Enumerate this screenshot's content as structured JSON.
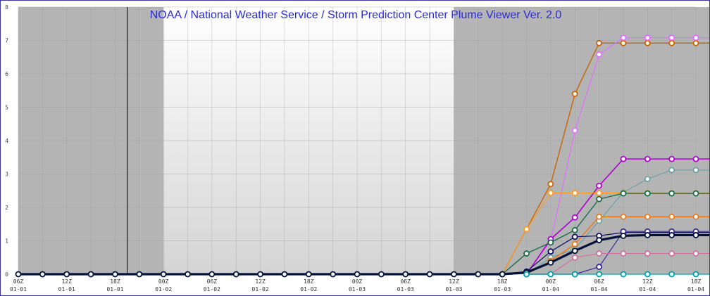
{
  "chart_data": {
    "type": "line",
    "title": "NOAA / National Weather Service / Storm Prediction Center Plume Viewer Ver. 2.0",
    "ylim": [
      0,
      8
    ],
    "yticks": [
      "0",
      "1",
      "2",
      "3",
      "4",
      "5",
      "6",
      "7",
      "8"
    ],
    "x_hours": [
      0,
      6,
      12,
      18,
      24,
      30,
      36,
      42,
      48,
      54,
      60,
      66,
      72,
      78,
      84,
      90,
      96,
      102,
      108,
      114,
      120,
      126,
      128,
      132,
      138,
      144,
      150,
      156,
      162,
      168,
      174,
      180
    ],
    "x_tick_labels": [
      [
        "06Z",
        "01-01"
      ],
      [
        "12Z",
        "01-01"
      ],
      [
        "18Z",
        "01-01"
      ],
      [
        "00Z",
        "01-02"
      ],
      [
        "06Z",
        "01-02"
      ],
      [
        "12Z",
        "01-02"
      ],
      [
        "18Z",
        "01-02"
      ],
      [
        "00Z",
        "01-03"
      ],
      [
        "06Z",
        "01-03"
      ],
      [
        "12Z",
        "01-03"
      ],
      [
        "18Z",
        "01-03"
      ],
      [
        "00Z",
        "01-04"
      ],
      [
        "06Z",
        "01-04"
      ],
      [
        "12Z",
        "01-04"
      ],
      [
        "18Z",
        "01-04"
      ]
    ],
    "shaded_periods": [
      [
        0,
        6
      ],
      [
        18,
        30
      ],
      [
        42,
        54
      ],
      [
        66,
        72
      ]
    ],
    "current_time_line": 4.5,
    "grid": true,
    "series": [
      {
        "color": "#c86400",
        "width": 1.4,
        "radius": 3.5,
        "points": [
          [
            60,
            0
          ],
          [
            66,
            2.7
          ],
          [
            69,
            5.4
          ],
          [
            72,
            6.92
          ],
          [
            75,
            6.92
          ],
          [
            78,
            6.92
          ],
          [
            81,
            6.92
          ],
          [
            84,
            6.92
          ],
          [
            87,
            6.92
          ]
        ]
      },
      {
        "color": "#e070ff",
        "width": 1.2,
        "radius": 3.5,
        "points": [
          [
            63,
            0
          ],
          [
            66,
            1.0
          ],
          [
            69,
            4.3
          ],
          [
            72,
            6.58
          ],
          [
            75,
            7.08
          ],
          [
            78,
            7.08
          ],
          [
            81,
            7.08
          ],
          [
            84,
            7.08
          ],
          [
            87,
            7.08
          ]
        ]
      },
      {
        "color": "#b000d0",
        "width": 1.6,
        "radius": 3.5,
        "points": [
          [
            63,
            0
          ],
          [
            66,
            1.05
          ],
          [
            69,
            1.7
          ],
          [
            72,
            2.65
          ],
          [
            75,
            3.45
          ],
          [
            78,
            3.45
          ],
          [
            81,
            3.45
          ],
          [
            84,
            3.45
          ],
          [
            87,
            3.45
          ]
        ]
      },
      {
        "color": "#6fa0a0",
        "width": 1.2,
        "radius": 3.5,
        "points": [
          [
            63,
            0
          ],
          [
            66,
            0.5
          ],
          [
            69,
            0.75
          ],
          [
            72,
            1.6
          ],
          [
            75,
            2.45
          ],
          [
            78,
            2.85
          ],
          [
            81,
            3.12
          ],
          [
            84,
            3.12
          ],
          [
            87,
            3.12
          ]
        ]
      },
      {
        "color": "#ff9a20",
        "width": 1.2,
        "radius": 3.5,
        "points": [
          [
            60,
            0
          ],
          [
            63,
            1.35
          ],
          [
            66,
            2.43
          ],
          [
            69,
            2.43
          ],
          [
            72,
            2.43
          ],
          [
            75,
            2.43
          ],
          [
            78,
            2.43
          ],
          [
            81,
            2.43
          ],
          [
            84,
            2.43
          ],
          [
            87,
            2.43
          ]
        ]
      },
      {
        "color": "#1c6b4a",
        "width": 1.4,
        "radius": 3.5,
        "points": [
          [
            60,
            0
          ],
          [
            63,
            0.62
          ],
          [
            66,
            0.95
          ],
          [
            69,
            1.32
          ],
          [
            72,
            2.25
          ],
          [
            75,
            2.42
          ],
          [
            78,
            2.42
          ],
          [
            81,
            2.42
          ],
          [
            84,
            2.42
          ],
          [
            87,
            2.42
          ]
        ]
      },
      {
        "color": "#f07a14",
        "width": 1.5,
        "radius": 3.5,
        "points": [
          [
            63,
            0
          ],
          [
            66,
            0.4
          ],
          [
            69,
            0.9
          ],
          [
            72,
            1.72
          ],
          [
            75,
            1.72
          ],
          [
            78,
            1.72
          ],
          [
            81,
            1.72
          ],
          [
            84,
            1.72
          ],
          [
            87,
            1.72
          ]
        ]
      },
      {
        "color": "#101060",
        "width": 1.2,
        "radius": 3.5,
        "points": [
          [
            60,
            0
          ],
          [
            63,
            0.08
          ],
          [
            66,
            0.68
          ],
          [
            69,
            1.12
          ],
          [
            72,
            1.15
          ],
          [
            75,
            1.25
          ],
          [
            78,
            1.25
          ],
          [
            81,
            1.25
          ],
          [
            84,
            1.25
          ],
          [
            87,
            1.25
          ]
        ]
      },
      {
        "color": "#3a2a9a",
        "width": 1.2,
        "radius": 3.5,
        "points": [
          [
            63,
            0
          ],
          [
            66,
            0
          ],
          [
            69,
            0
          ],
          [
            72,
            0.22
          ],
          [
            75,
            1.28
          ],
          [
            78,
            1.28
          ],
          [
            81,
            1.28
          ],
          [
            84,
            1.28
          ],
          [
            87,
            1.28
          ]
        ]
      },
      {
        "color": "#d070a0",
        "width": 1.2,
        "radius": 3.5,
        "points": [
          [
            63,
            0
          ],
          [
            66,
            0
          ],
          [
            69,
            0.5
          ],
          [
            72,
            0.62
          ],
          [
            75,
            0.62
          ],
          [
            78,
            0.62
          ],
          [
            81,
            0.62
          ],
          [
            84,
            0.62
          ],
          [
            87,
            0.62
          ]
        ]
      },
      {
        "color": "#00103a",
        "width": 3.2,
        "radius": 3.5,
        "points": [
          [
            0,
            0
          ],
          [
            3,
            0
          ],
          [
            6,
            0
          ],
          [
            9,
            0
          ],
          [
            12,
            0
          ],
          [
            15,
            0
          ],
          [
            18,
            0
          ],
          [
            21,
            0
          ],
          [
            24,
            0
          ],
          [
            27,
            0
          ],
          [
            30,
            0
          ],
          [
            33,
            0
          ],
          [
            36,
            0
          ],
          [
            39,
            0
          ],
          [
            42,
            0
          ],
          [
            45,
            0
          ],
          [
            48,
            0
          ],
          [
            51,
            0
          ],
          [
            54,
            0
          ],
          [
            57,
            0
          ],
          [
            60,
            0
          ],
          [
            63,
            0.05
          ],
          [
            66,
            0.35
          ],
          [
            69,
            0.7
          ],
          [
            72,
            1.02
          ],
          [
            75,
            1.15
          ],
          [
            78,
            1.17
          ],
          [
            81,
            1.17
          ],
          [
            84,
            1.17
          ],
          [
            87,
            1.17
          ]
        ]
      },
      {
        "color": "#00a0a8",
        "width": 1.2,
        "radius": 3.5,
        "points": [
          [
            63,
            0
          ],
          [
            66,
            0
          ],
          [
            69,
            0
          ],
          [
            72,
            0
          ],
          [
            75,
            0
          ],
          [
            78,
            0
          ],
          [
            81,
            0
          ],
          [
            84,
            0
          ],
          [
            87,
            0
          ]
        ]
      }
    ]
  }
}
